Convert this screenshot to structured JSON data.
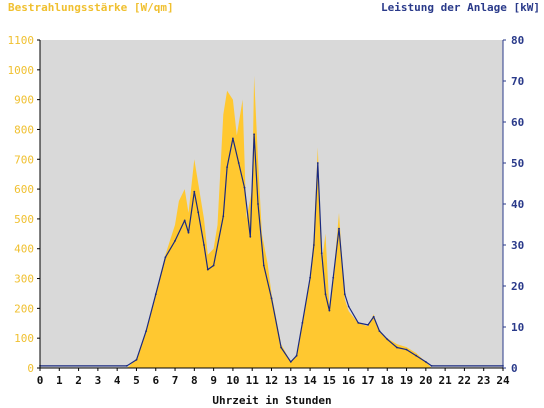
{
  "chart_data": {
    "type": "area",
    "left_axis_title": "Bestrahlungsstärke [W/qm]",
    "right_axis_title": "Leistung der Anlage [kW]",
    "xlabel": "Uhrzeit in Stunden",
    "xlim": [
      0,
      24
    ],
    "x_ticks": [
      "0",
      "1",
      "2",
      "3",
      "4",
      "5",
      "6",
      "7",
      "8",
      "9",
      "10",
      "11",
      "12",
      "13",
      "14",
      "15",
      "16",
      "17",
      "18",
      "19",
      "20",
      "21",
      "22",
      "23",
      "24"
    ],
    "y_left_lim": [
      0,
      1100
    ],
    "y_left_ticks": [
      "0",
      "100",
      "200",
      "300",
      "400",
      "500",
      "600",
      "700",
      "800",
      "900",
      "1000",
      "1100"
    ],
    "y_right_lim": [
      0,
      80
    ],
    "y_right_ticks": [
      "0",
      "10",
      "20",
      "30",
      "40",
      "50",
      "60",
      "70",
      "80"
    ],
    "grid": false,
    "colors": {
      "plot_background": "#d9d9d9",
      "irradiance_fill": "#ffc830",
      "power_line": "#1a2a80",
      "left_axis_text": "#f0c030",
      "right_axis_text": "#2a3a8a"
    },
    "series": [
      {
        "axis": "left",
        "style": "filled-area",
        "x": [
          0,
          4.5,
          5,
          5.5,
          6,
          6.5,
          7,
          7.2,
          7.5,
          7.7,
          8,
          8.2,
          8.5,
          8.7,
          9,
          9.2,
          9.5,
          9.7,
          10,
          10.2,
          10.5,
          10.7,
          11,
          11.1,
          11.3,
          11.5,
          11.8,
          12,
          12.5,
          13,
          13.3,
          13.6,
          14,
          14.2,
          14.4,
          14.6,
          14.8,
          15,
          15.2,
          15.5,
          15.8,
          16,
          16.5,
          17,
          17.3,
          17.6,
          18,
          18.5,
          19,
          19.5,
          20,
          20.3,
          24
        ],
        "y": [
          0,
          0,
          30,
          120,
          250,
          380,
          480,
          560,
          600,
          520,
          700,
          620,
          500,
          380,
          400,
          480,
          850,
          930,
          900,
          780,
          900,
          500,
          600,
          980,
          700,
          450,
          350,
          250,
          80,
          20,
          40,
          150,
          300,
          450,
          740,
          350,
          450,
          200,
          300,
          520,
          230,
          190,
          150,
          140,
          180,
          120,
          100,
          80,
          70,
          50,
          20,
          0,
          0
        ]
      },
      {
        "axis": "right",
        "style": "line",
        "x": [
          0,
          4.5,
          5,
          5.5,
          6,
          6.5,
          7,
          7.5,
          7.7,
          8,
          8.2,
          8.5,
          8.7,
          9,
          9.5,
          9.7,
          10,
          10.3,
          10.6,
          10.9,
          11.1,
          11.3,
          11.6,
          12,
          12.5,
          13,
          13.3,
          13.6,
          14,
          14.2,
          14.4,
          14.6,
          14.8,
          15,
          15.2,
          15.5,
          15.8,
          16,
          16.5,
          17,
          17.3,
          17.6,
          18,
          18.5,
          19,
          19.5,
          20,
          20.3,
          24
        ],
        "y": [
          0.5,
          0.5,
          2,
          9,
          18,
          27,
          31,
          36,
          33,
          43,
          38,
          30,
          24,
          25,
          37,
          49,
          56,
          50,
          44,
          32,
          57,
          40,
          25,
          17,
          5,
          1.5,
          3,
          11,
          22,
          30,
          50,
          28,
          18,
          14,
          22,
          34,
          18,
          15,
          11,
          10.5,
          12.5,
          9,
          7,
          5,
          4.5,
          3,
          1.5,
          0.5,
          0.5
        ]
      }
    ]
  }
}
